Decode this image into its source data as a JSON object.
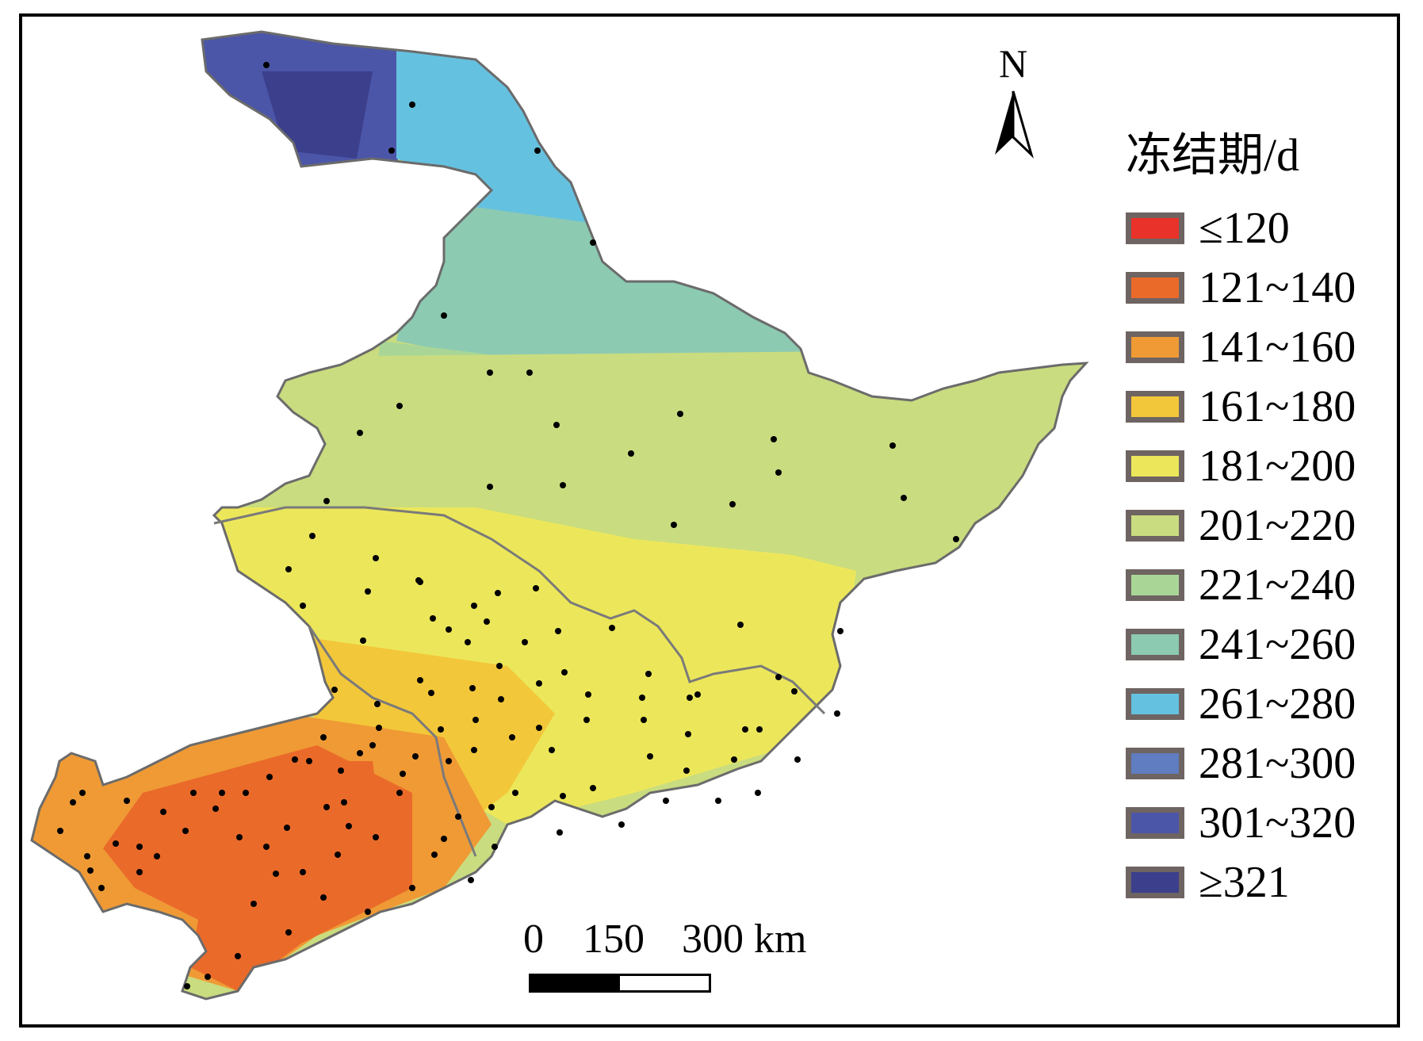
{
  "legend": {
    "title": "冻结期/d",
    "classes": [
      {
        "label": "≤120",
        "color": "#e8322a"
      },
      {
        "label": "121~140",
        "color": "#ea6a2a"
      },
      {
        "label": "141~160",
        "color": "#ef9a35"
      },
      {
        "label": "161~180",
        "color": "#f3c73a"
      },
      {
        "label": "181~200",
        "color": "#ece75a"
      },
      {
        "label": "201~220",
        "color": "#c9dc7f"
      },
      {
        "label": "221~240",
        "color": "#a9d697"
      },
      {
        "label": "241~260",
        "color": "#8ccab2"
      },
      {
        "label": "261~280",
        "color": "#65c1e0"
      },
      {
        "label": "281~300",
        "color": "#5f7dc0"
      },
      {
        "label": "301~320",
        "color": "#4c56a8"
      },
      {
        "label": "≥321",
        "color": "#3b3f8c"
      }
    ]
  },
  "north_arrow": {
    "label": "N"
  },
  "scale_bar": {
    "labels": [
      "0",
      "150",
      "300 km"
    ]
  },
  "stations": {
    "count": 140,
    "color": "#000000"
  }
}
